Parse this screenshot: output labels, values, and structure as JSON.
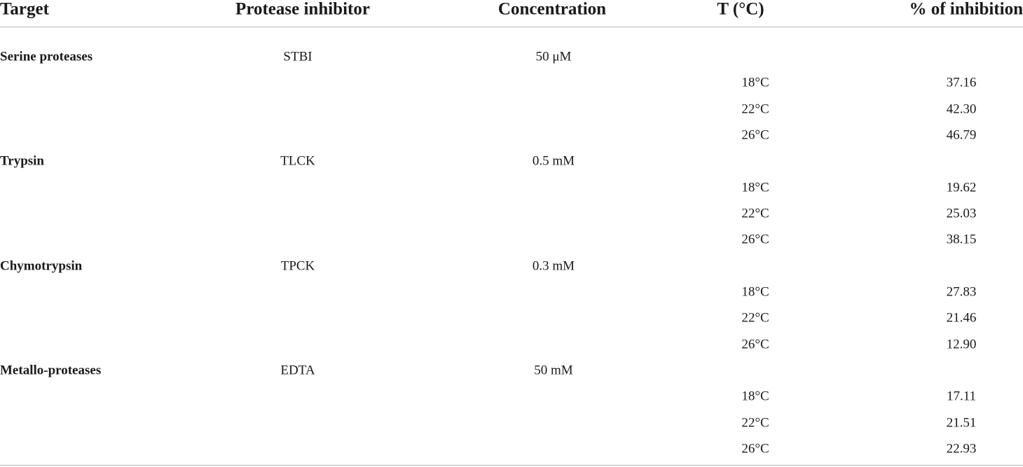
{
  "table": {
    "header": [
      "Target",
      "Protease inhibitor",
      "Concentration",
      "T (°C)",
      "% of inhibition"
    ],
    "groups": [
      {
        "target": "Serine proteases",
        "inhibitor": "STBI",
        "concentration": "50 μM",
        "measurements": [
          {
            "temperature": "18°C",
            "inhibition": "37.16"
          },
          {
            "temperature": "22°C",
            "inhibition": "42.30"
          },
          {
            "temperature": "26°C",
            "inhibition": "46.79"
          }
        ]
      },
      {
        "target": "Trypsin",
        "inhibitor": "TLCK",
        "concentration": "0.5 mM",
        "measurements": [
          {
            "temperature": "18°C",
            "inhibition": "19.62"
          },
          {
            "temperature": "22°C",
            "inhibition": "25.03"
          },
          {
            "temperature": "26°C",
            "inhibition": "38.15"
          }
        ]
      },
      {
        "target": "Chymotrypsin",
        "inhibitor": "TPCK",
        "concentration": "0.3 mM",
        "measurements": [
          {
            "temperature": "18°C",
            "inhibition": "27.83"
          },
          {
            "temperature": "22°C",
            "inhibition": "21.46"
          },
          {
            "temperature": "26°C",
            "inhibition": "12.90"
          }
        ]
      },
      {
        "target": "Metallo-proteases",
        "inhibitor": "EDTA",
        "concentration": "50 mM",
        "measurements": [
          {
            "temperature": "18°C",
            "inhibition": "17.11"
          },
          {
            "temperature": "22°C",
            "inhibition": "21.51"
          },
          {
            "temperature": "26°C",
            "inhibition": "22.93"
          }
        ]
      }
    ]
  }
}
